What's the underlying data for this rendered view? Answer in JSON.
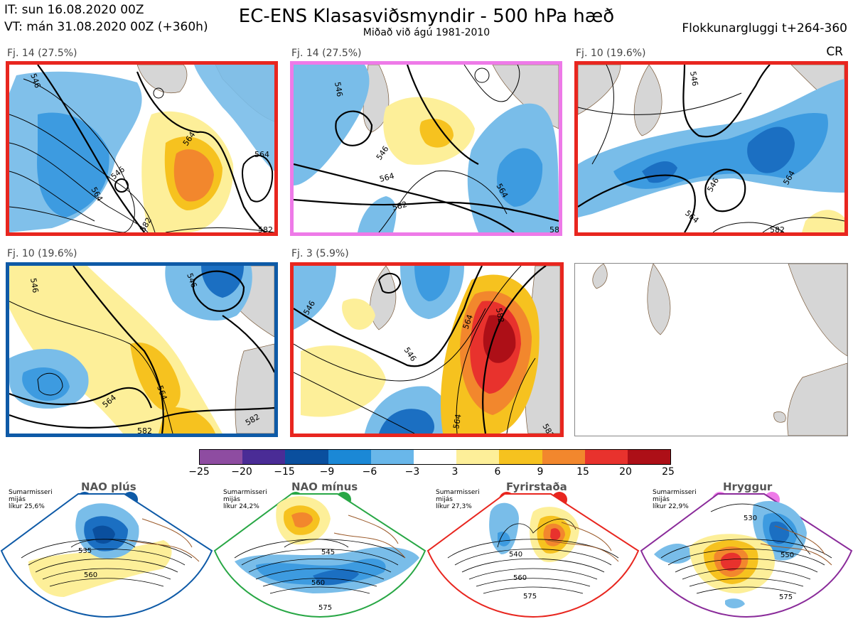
{
  "header": {
    "it": "IT: sun 16.08.2020 00Z",
    "vt": "VT: mán 31.08.2020 00Z  (+360h)",
    "title": "EC-ENS Klasasviðsmyndir - 500 hPa hæð",
    "subtitle": "Miðað við ágú 1981-2010",
    "window": "Flokkunargluggi t+264-360",
    "cr": "CR"
  },
  "colors": {
    "ocean": "#ffffff",
    "land": "#d6d6d6",
    "coast": "#7a5a3a",
    "red_frame": "#e8261f",
    "pink_frame": "#ee7ae8",
    "blue_frame": "#0e5aa7",
    "green_frame": "#28a745",
    "purple_frame": "#8a2b9a"
  },
  "panels": [
    {
      "label": "Fj. 14 (27.5%)",
      "frame": "red"
    },
    {
      "label": "Fj. 14 (27.5%)",
      "frame": "pink"
    },
    {
      "label": "Fj. 10 (19.6%)",
      "frame": "red"
    },
    {
      "label": "Fj. 10 (19.6%)",
      "frame": "blue"
    },
    {
      "label": "Fj. 3 (5.9%)",
      "frame": "red"
    },
    {
      "label": "",
      "frame": "none"
    }
  ],
  "contour_labels": {
    "p1": [
      "546",
      "564",
      "546",
      "564",
      "564",
      "582",
      "582"
    ],
    "p2": [
      "546",
      "546",
      "564",
      "564",
      "582",
      "582"
    ],
    "p3": [
      "546",
      "546",
      "564",
      "582",
      "564"
    ],
    "p4": [
      "546",
      "546",
      "564",
      "564",
      "582",
      "582"
    ],
    "p5": [
      "546",
      "546",
      "564",
      "582",
      "564",
      "582"
    ]
  },
  "colorbar": {
    "ticks": [
      "−25",
      "−20",
      "−15",
      "−9",
      "−6",
      "−3",
      "3",
      "6",
      "9",
      "15",
      "20",
      "25"
    ],
    "colors": [
      "#8e4ca1",
      "#4a2c96",
      "#0a4f9e",
      "#1b88d6",
      "#69b7ea",
      "#ffffff",
      "#fdef99",
      "#f6c21f",
      "#f2872d",
      "#e8322d",
      "#ad0f17"
    ]
  },
  "regimes": [
    {
      "name": "NAO plús",
      "note": [
        "Sumarmisseri",
        "mijás",
        "líkur 25,6%"
      ],
      "contours": [
        "535",
        "560"
      ],
      "color": "blue"
    },
    {
      "name": "NAO mínus",
      "note": [
        "Sumarmisseri",
        "mijás",
        "líkur 24,2%"
      ],
      "contours": [
        "545",
        "560",
        "575"
      ],
      "color": "green"
    },
    {
      "name": "Fyrirstaða",
      "note": [
        "Sumarmisseri",
        "mijás",
        "líkur 27,3%"
      ],
      "contours": [
        "540",
        "560",
        "575"
      ],
      "color": "red"
    },
    {
      "name": "Hryggur",
      "note": [
        "Sumarmisseri",
        "mijás",
        "líkur 22,9%"
      ],
      "contours": [
        "530",
        "550",
        "575"
      ],
      "color": "purple"
    }
  ]
}
